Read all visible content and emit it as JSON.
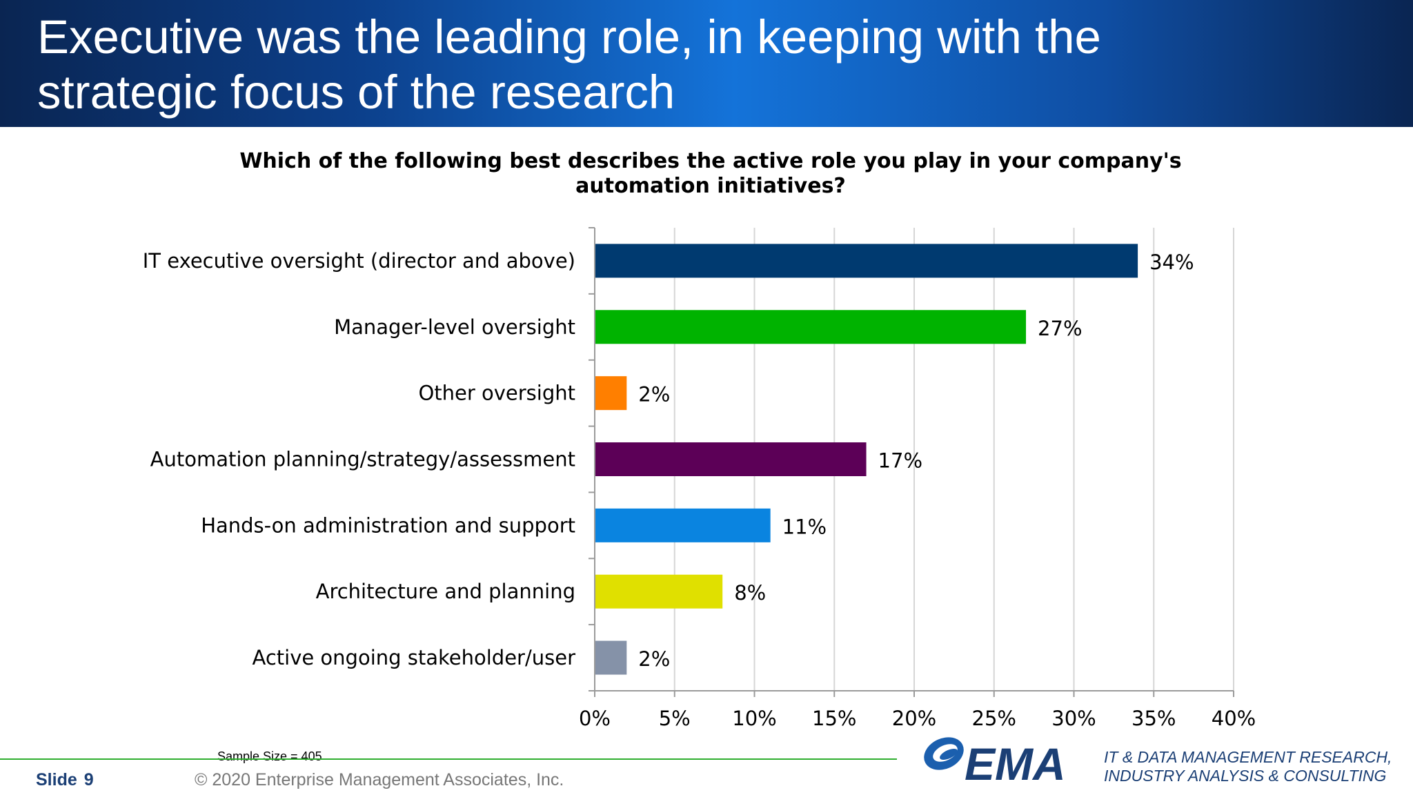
{
  "header": {
    "title_line1": "Executive was the leading role, in keeping with the",
    "title_line2": "strategic focus of the research"
  },
  "question": {
    "line1": "Which of the following best describes the active role you play in your company's",
    "line2": "automation initiatives?"
  },
  "chart_data": {
    "type": "bar",
    "orientation": "horizontal",
    "categories": [
      "IT executive oversight (director and above)",
      "Manager-level oversight",
      "Other oversight",
      "Automation planning/strategy/assessment",
      "Hands-on administration and support",
      "Architecture and planning",
      "Active ongoing stakeholder/user"
    ],
    "values": [
      34,
      27,
      2,
      17,
      11,
      8,
      2
    ],
    "value_labels": [
      "34%",
      "27%",
      "2%",
      "17%",
      "11%",
      "8%",
      "2%"
    ],
    "colors": [
      "#003a70",
      "#00b300",
      "#ff7f00",
      "#5c0057",
      "#0a84e0",
      "#e0e000",
      "#8592a8"
    ],
    "xlim": [
      0,
      40
    ],
    "xticks": [
      0,
      5,
      10,
      15,
      20,
      25,
      30,
      35,
      40
    ],
    "xtick_labels": [
      "0%",
      "5%",
      "10%",
      "15%",
      "20%",
      "25%",
      "30%",
      "35%",
      "40%"
    ],
    "grid": true,
    "legend": "none"
  },
  "sample_size": "Sample Size = 405",
  "footer": {
    "slide_label": "Slide",
    "slide_number": "9",
    "copyright": "© 2020 Enterprise Management Associates, Inc.",
    "logo_text": "EMA",
    "tagline_line1": "IT & DATA MANAGEMENT RESEARCH,",
    "tagline_line2": "INDUSTRY ANALYSIS & CONSULTING"
  }
}
